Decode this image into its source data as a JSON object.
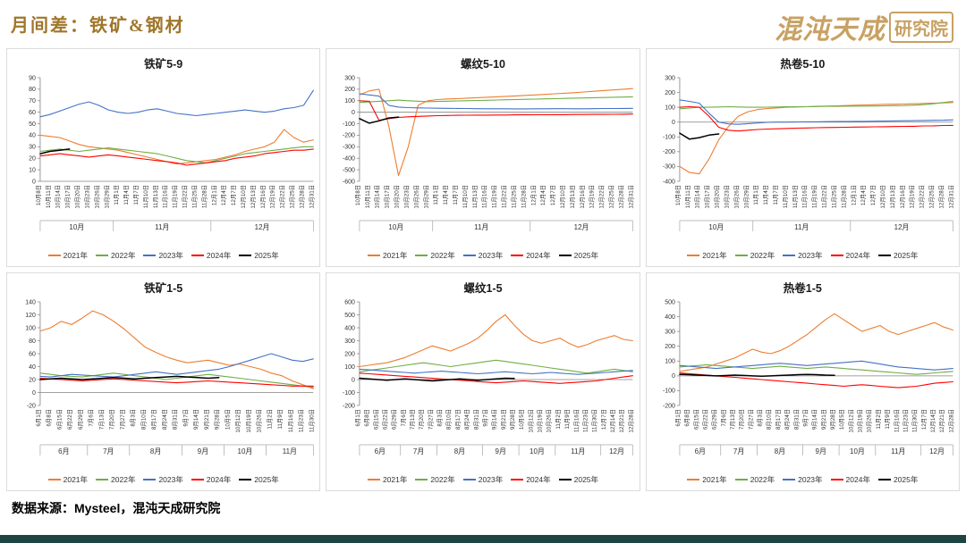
{
  "header": {
    "title": "月间差：铁矿&钢材",
    "logo_main": "混沌天成",
    "logo_sub": "研究院"
  },
  "footer": {
    "source": "数据来源：Mysteel，混沌天成研究院"
  },
  "colors": {
    "title_gold": "#A0762A",
    "logo_tan": "#C8A163",
    "bottom_bar": "#1E4444",
    "series": {
      "2021年": "#ED7D31",
      "2022年": "#70AD47",
      "2023年": "#4472C4",
      "2024年": "#FF0000",
      "2025年": "#000000"
    }
  },
  "legend_labels": [
    "2021年",
    "2022年",
    "2023年",
    "2024年",
    "2025年"
  ],
  "x_axis": {
    "top": [
      "10月8日",
      "10月11日",
      "10月14日",
      "10月17日",
      "10月20日",
      "10月23日",
      "10月26日",
      "10月29日",
      "11月1日",
      "11月4日",
      "11月7日",
      "11月10日",
      "11月13日",
      "11月16日",
      "11月19日",
      "11月22日",
      "11月25日",
      "11月28日",
      "12月1日",
      "12月4日",
      "12月7日",
      "12月10日",
      "12月13日",
      "12月16日",
      "12月19日",
      "12月22日",
      "12月25日",
      "12月28日",
      "12月31日"
    ],
    "bottom_short": [
      "6月1日",
      "6月8日",
      "6月15日",
      "6月22日",
      "6月29日",
      "7月6日",
      "7月13日",
      "7月20日",
      "7月27日",
      "8月3日",
      "8月10日",
      "8月17日",
      "8月24日",
      "8月31日",
      "9月7日",
      "9月14日",
      "9月21日",
      "9月28日",
      "10月5日",
      "10月12日",
      "10月19日",
      "10月26日",
      "11月2日",
      "11月9日",
      "11月16日",
      "11月23日",
      "11月30日"
    ],
    "bottom_full": [
      "6月1日",
      "6月8日",
      "6月15日",
      "6月22日",
      "6月29日",
      "7月6日",
      "7月13日",
      "7月20日",
      "7月27日",
      "8月3日",
      "8月10日",
      "8月17日",
      "8月24日",
      "8月31日",
      "9月7日",
      "9月14日",
      "9月21日",
      "9月28日",
      "10月5日",
      "10月12日",
      "10月19日",
      "10月26日",
      "11月2日",
      "11月9日",
      "11月16日",
      "11月23日",
      "11月30日",
      "12月7日",
      "12月14日",
      "12月21日",
      "12月28日"
    ]
  },
  "chart_data": [
    {
      "type": "line",
      "title": "铁矿5-9",
      "x_ref": "top",
      "month_labels": [
        "10月",
        "11月",
        "12月"
      ],
      "ylim": [
        0,
        90
      ],
      "yticks": [
        0,
        10,
        20,
        30,
        40,
        50,
        60,
        70,
        80,
        90
      ],
      "series": [
        {
          "name": "2021年",
          "values": [
            40,
            39,
            38,
            35,
            32,
            30,
            29,
            28,
            27,
            25,
            23,
            21,
            19,
            17,
            15,
            16,
            17,
            18,
            19,
            21,
            23,
            26,
            28,
            30,
            34,
            45,
            38,
            34,
            36
          ]
        },
        {
          "name": "2022年",
          "values": [
            26,
            27,
            28,
            27,
            26,
            27,
            28,
            29,
            28,
            27,
            26,
            25,
            24,
            22,
            20,
            18,
            17,
            16,
            18,
            20,
            22,
            24,
            25,
            26,
            27,
            28,
            29,
            30,
            30
          ]
        },
        {
          "name": "2023年",
          "values": [
            56,
            58,
            61,
            64,
            67,
            69,
            66,
            62,
            60,
            59,
            60,
            62,
            63,
            61,
            59,
            58,
            57,
            58,
            59,
            60,
            61,
            62,
            61,
            60,
            61,
            63,
            64,
            66,
            79
          ]
        },
        {
          "name": "2024年",
          "values": [
            22,
            23,
            24,
            23,
            22,
            21,
            22,
            23,
            22,
            21,
            20,
            19,
            18,
            17,
            16,
            14,
            15,
            16,
            17,
            18,
            20,
            21,
            22,
            24,
            25,
            26,
            27,
            27,
            28
          ]
        },
        {
          "name": "2025年",
          "values": [
            24,
            26,
            27,
            28
          ]
        }
      ]
    },
    {
      "type": "line",
      "title": "螺纹5-10",
      "x_ref": "top",
      "month_labels": [
        "10月",
        "11月",
        "12月"
      ],
      "ylim": [
        -600,
        300
      ],
      "yticks": [
        -600,
        -500,
        -400,
        -300,
        -200,
        -100,
        0,
        100,
        200,
        300
      ],
      "series": [
        {
          "name": "2021年",
          "values": [
            150,
            185,
            200,
            -120,
            -550,
            -300,
            60,
            100,
            110,
            115,
            118,
            122,
            126,
            130,
            134,
            138,
            142,
            146,
            150,
            155,
            160,
            165,
            170,
            176,
            182,
            188,
            194,
            200,
            205
          ]
        },
        {
          "name": "2022年",
          "values": [
            85,
            90,
            95,
            100,
            105,
            100,
            96,
            92,
            94,
            96,
            98,
            100,
            102,
            104,
            106,
            108,
            110,
            112,
            114,
            116,
            118,
            120,
            122,
            124,
            126,
            128,
            130,
            132,
            134
          ]
        },
        {
          "name": "2023年",
          "values": [
            160,
            150,
            140,
            60,
            45,
            40,
            38,
            36,
            35,
            34,
            33,
            32,
            31,
            30,
            30,
            30,
            29,
            29,
            30,
            30,
            31,
            31,
            30,
            30,
            31,
            32,
            32,
            33,
            34
          ]
        },
        {
          "name": "2024年",
          "values": [
            100,
            95,
            -70,
            -55,
            -45,
            -40,
            -36,
            -33,
            -30,
            -28,
            -27,
            -26,
            -25,
            -25,
            -24,
            -24,
            -23,
            -23,
            -22,
            -22,
            -21,
            -21,
            -20,
            -20,
            -19,
            -19,
            -18,
            -17,
            -16
          ]
        },
        {
          "name": "2025年",
          "values": [
            -55,
            -95,
            -75,
            -50,
            -42
          ]
        }
      ]
    },
    {
      "type": "line",
      "title": "热卷5-10",
      "x_ref": "top",
      "month_labels": [
        "10月",
        "11月",
        "12月"
      ],
      "ylim": [
        -400,
        300
      ],
      "yticks": [
        -400,
        -300,
        -200,
        -100,
        0,
        100,
        200,
        300
      ],
      "series": [
        {
          "name": "2021年",
          "values": [
            -300,
            -340,
            -350,
            -250,
            -120,
            -30,
            40,
            70,
            85,
            92,
            96,
            100,
            102,
            104,
            106,
            108,
            110,
            112,
            114,
            116,
            118,
            120,
            121,
            122,
            124,
            126,
            128,
            130,
            132
          ]
        },
        {
          "name": "2022年",
          "values": [
            90,
            95,
            100,
            100,
            102,
            104,
            102,
            100,
            100,
            101,
            102,
            103,
            104,
            104,
            105,
            106,
            106,
            107,
            108,
            108,
            109,
            110,
            111,
            112,
            114,
            118,
            124,
            132,
            140
          ]
        },
        {
          "name": "2023年",
          "values": [
            150,
            140,
            128,
            60,
            0,
            -12,
            -15,
            -10,
            -6,
            -2,
            0,
            0,
            1,
            2,
            2,
            3,
            4,
            4,
            5,
            5,
            6,
            7,
            8,
            9,
            10,
            11,
            12,
            13,
            15
          ]
        },
        {
          "name": "2024年",
          "values": [
            100,
            104,
            100,
            40,
            -35,
            -55,
            -60,
            -55,
            -50,
            -47,
            -45,
            -43,
            -41,
            -40,
            -38,
            -37,
            -36,
            -35,
            -34,
            -33,
            -32,
            -31,
            -30,
            -29,
            -28,
            -26,
            -25,
            -23,
            -22
          ]
        },
        {
          "name": "2025年",
          "values": [
            -75,
            -115,
            -105,
            -88,
            -80
          ]
        }
      ]
    },
    {
      "type": "line",
      "title": "铁矿1-5",
      "x_ref": "bottom_short",
      "month_labels": [
        "6月",
        "7月",
        "8月",
        "9月",
        "10月",
        "11月"
      ],
      "ylim": [
        -20,
        140
      ],
      "yticks": [
        -20,
        0,
        20,
        40,
        60,
        80,
        100,
        120,
        140
      ],
      "series": [
        {
          "name": "2021年",
          "values": [
            95,
            100,
            110,
            105,
            115,
            126,
            120,
            110,
            98,
            84,
            70,
            62,
            55,
            50,
            46,
            48,
            50,
            46,
            42,
            44,
            40,
            36,
            30,
            26,
            18,
            12,
            6
          ]
        },
        {
          "name": "2022年",
          "values": [
            30,
            28,
            26,
            25,
            24,
            26,
            28,
            30,
            28,
            26,
            24,
            22,
            20,
            22,
            24,
            26,
            28,
            26,
            24,
            22,
            20,
            18,
            16,
            14,
            12,
            10,
            8
          ]
        },
        {
          "name": "2023年",
          "values": [
            25,
            24,
            26,
            28,
            27,
            26,
            25,
            24,
            26,
            28,
            30,
            32,
            30,
            28,
            30,
            32,
            34,
            36,
            40,
            45,
            50,
            55,
            60,
            55,
            50,
            48,
            52
          ]
        },
        {
          "name": "2024年",
          "values": [
            22,
            21,
            20,
            19,
            18,
            19,
            20,
            21,
            20,
            19,
            18,
            17,
            16,
            15,
            16,
            17,
            18,
            17,
            16,
            15,
            14,
            13,
            12,
            11,
            10,
            10,
            10
          ]
        },
        {
          "name": "2025年",
          "values": [
            20,
            21,
            22,
            21,
            20,
            21,
            22,
            23,
            22,
            21,
            22,
            23,
            24,
            25,
            24,
            23,
            22,
            23
          ]
        }
      ]
    },
    {
      "type": "line",
      "title": "螺纹1-5",
      "x_ref": "bottom_full",
      "month_labels": [
        "6月",
        "7月",
        "8月",
        "9月",
        "10月",
        "11月",
        "12月"
      ],
      "ylim": [
        -200,
        600
      ],
      "yticks": [
        -200,
        -100,
        0,
        100,
        200,
        300,
        400,
        500,
        600
      ],
      "series": [
        {
          "name": "2021年",
          "values": [
            100,
            110,
            120,
            130,
            150,
            170,
            200,
            230,
            260,
            240,
            220,
            250,
            280,
            320,
            380,
            450,
            500,
            420,
            350,
            300,
            280,
            300,
            320,
            280,
            250,
            270,
            300,
            320,
            340,
            310,
            300
          ]
        },
        {
          "name": "2022年",
          "values": [
            60,
            70,
            80,
            90,
            100,
            110,
            120,
            130,
            120,
            110,
            100,
            110,
            120,
            130,
            140,
            150,
            140,
            130,
            120,
            110,
            100,
            90,
            80,
            70,
            60,
            50,
            60,
            70,
            80,
            70,
            60
          ]
        },
        {
          "name": "2023年",
          "values": [
            80,
            75,
            70,
            65,
            60,
            55,
            50,
            55,
            60,
            65,
            60,
            55,
            50,
            45,
            50,
            55,
            60,
            55,
            50,
            45,
            50,
            55,
            50,
            45,
            40,
            45,
            50,
            55,
            60,
            65,
            70
          ]
        },
        {
          "name": "2024年",
          "values": [
            50,
            45,
            40,
            35,
            30,
            25,
            20,
            15,
            10,
            5,
            0,
            -5,
            -10,
            -15,
            -20,
            -25,
            -20,
            -15,
            -10,
            -15,
            -20,
            -25,
            -30,
            -25,
            -20,
            -15,
            -10,
            0,
            10,
            20,
            30
          ]
        },
        {
          "name": "2025年",
          "values": [
            10,
            5,
            0,
            -5,
            0,
            5,
            0,
            -5,
            -10,
            -5,
            0,
            5,
            0,
            -5,
            0,
            5,
            10,
            8
          ]
        }
      ]
    },
    {
      "type": "line",
      "title": "热卷1-5",
      "x_ref": "bottom_full",
      "month_labels": [
        "6月",
        "7月",
        "8月",
        "9月",
        "10月",
        "11月",
        "12月"
      ],
      "ylim": [
        -200,
        500
      ],
      "yticks": [
        -200,
        -100,
        0,
        100,
        200,
        300,
        400,
        500
      ],
      "series": [
        {
          "name": "2021年",
          "values": [
            30,
            40,
            50,
            60,
            80,
            100,
            120,
            150,
            180,
            160,
            150,
            170,
            200,
            240,
            280,
            330,
            380,
            420,
            380,
            340,
            300,
            320,
            340,
            300,
            280,
            300,
            320,
            340,
            360,
            330,
            310
          ]
        },
        {
          "name": "2022年",
          "values": [
            60,
            65,
            70,
            75,
            70,
            65,
            60,
            55,
            50,
            55,
            60,
            65,
            60,
            55,
            50,
            55,
            60,
            55,
            50,
            45,
            40,
            35,
            30,
            25,
            20,
            15,
            10,
            15,
            20,
            25,
            30
          ]
        },
        {
          "name": "2023年",
          "values": [
            70,
            65,
            60,
            55,
            50,
            55,
            60,
            65,
            70,
            75,
            80,
            85,
            80,
            75,
            70,
            75,
            80,
            85,
            90,
            95,
            100,
            90,
            80,
            70,
            60,
            55,
            50,
            45,
            40,
            45,
            50
          ]
        },
        {
          "name": "2024年",
          "values": [
            20,
            15,
            10,
            5,
            0,
            -5,
            -10,
            -15,
            -20,
            -25,
            -30,
            -35,
            -40,
            -45,
            -50,
            -55,
            -60,
            -65,
            -70,
            -65,
            -60,
            -65,
            -70,
            -75,
            -80,
            -75,
            -70,
            -60,
            -50,
            -45,
            -40
          ]
        },
        {
          "name": "2025年",
          "values": [
            10,
            8,
            5,
            3,
            0,
            2,
            5,
            3,
            0,
            -2,
            0,
            3,
            5,
            8,
            10,
            8,
            5,
            4
          ]
        }
      ]
    }
  ]
}
